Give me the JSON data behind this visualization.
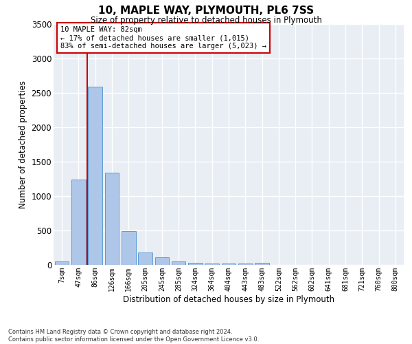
{
  "title": "10, MAPLE WAY, PLYMOUTH, PL6 7SS",
  "subtitle": "Size of property relative to detached houses in Plymouth",
  "xlabel": "Distribution of detached houses by size in Plymouth",
  "ylabel": "Number of detached properties",
  "bar_color": "#aec6e8",
  "bar_edge_color": "#5b9bd5",
  "background_color": "#e8eef4",
  "grid_color": "#ffffff",
  "annotation_box_color": "#cc0000",
  "property_line_color": "#cc0000",
  "property_label": "10 MAPLE WAY: 82sqm",
  "annotation_line1": "← 17% of detached houses are smaller (1,015)",
  "annotation_line2": "83% of semi-detached houses are larger (5,023) →",
  "categories": [
    "7sqm",
    "47sqm",
    "86sqm",
    "126sqm",
    "166sqm",
    "205sqm",
    "245sqm",
    "285sqm",
    "324sqm",
    "364sqm",
    "404sqm",
    "443sqm",
    "483sqm",
    "522sqm",
    "562sqm",
    "602sqm",
    "641sqm",
    "681sqm",
    "721sqm",
    "760sqm",
    "800sqm"
  ],
  "values": [
    50,
    1240,
    2590,
    1340,
    495,
    185,
    110,
    50,
    30,
    25,
    25,
    25,
    30,
    0,
    0,
    0,
    0,
    0,
    0,
    0,
    0
  ],
  "ylim": [
    0,
    3500
  ],
  "yticks": [
    0,
    500,
    1000,
    1500,
    2000,
    2500,
    3000,
    3500
  ],
  "footer_line1": "Contains HM Land Registry data © Crown copyright and database right 2024.",
  "footer_line2": "Contains public sector information licensed under the Open Government Licence v3.0.",
  "property_line_x": 1.5,
  "figsize": [
    6.0,
    5.0
  ],
  "dpi": 100
}
